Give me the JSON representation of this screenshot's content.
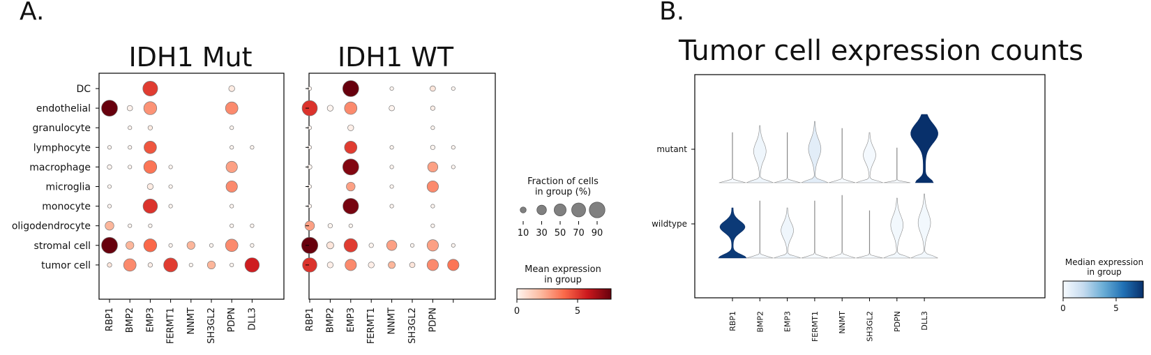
{
  "panel_labels": {
    "a": "A.",
    "b": "B."
  },
  "chart_data": [
    {
      "type": "dotplot",
      "title": "IDH1 Mut",
      "rows": [
        "DC",
        "endothelial",
        "granulocyte",
        "lymphocyte",
        "macrophage",
        "microglia",
        "monocyte",
        "oligodendrocyte",
        "stromal cell",
        "tumor cell"
      ],
      "genes": [
        "RBP1",
        "BMP2",
        "EMP3",
        "FERMT1",
        "NNMT",
        "SH3GL2",
        "PDPN",
        "DLL3"
      ],
      "fraction_pct": [
        [
          0,
          0,
          80,
          0,
          0,
          0,
          10,
          0
        ],
        [
          95,
          8,
          60,
          0,
          0,
          0,
          55,
          0
        ],
        [
          0,
          3,
          5,
          0,
          0,
          0,
          3,
          0
        ],
        [
          3,
          3,
          55,
          0,
          0,
          0,
          3,
          3
        ],
        [
          5,
          3,
          60,
          3,
          0,
          0,
          45,
          0
        ],
        [
          3,
          0,
          10,
          3,
          0,
          0,
          45,
          0
        ],
        [
          3,
          0,
          75,
          3,
          0,
          0,
          3,
          0
        ],
        [
          25,
          3,
          3,
          0,
          0,
          0,
          3,
          3
        ],
        [
          95,
          20,
          60,
          3,
          20,
          3,
          55,
          3
        ],
        [
          5,
          55,
          5,
          70,
          3,
          20,
          3,
          75
        ]
      ],
      "mean_expression": [
        [
          0,
          0,
          4.8,
          0,
          0,
          0,
          0.3,
          0
        ],
        [
          7.5,
          0.1,
          2.8,
          0,
          0,
          0,
          3.0,
          0
        ],
        [
          0,
          0,
          0.3,
          0,
          0,
          0,
          0,
          0
        ],
        [
          0,
          0,
          4.2,
          0,
          0,
          0,
          0,
          0
        ],
        [
          0,
          0,
          3.5,
          0,
          0,
          0,
          2.5,
          0
        ],
        [
          0,
          0,
          0.3,
          0,
          0,
          0,
          3.0,
          0
        ],
        [
          0,
          0,
          5.0,
          0,
          0,
          0,
          0,
          0
        ],
        [
          2.0,
          0,
          0,
          0,
          0,
          0,
          0,
          0
        ],
        [
          7.8,
          2.0,
          3.8,
          0,
          2.0,
          0,
          3.0,
          0
        ],
        [
          0.5,
          3.0,
          0.2,
          4.8,
          0,
          2.0,
          0,
          5.5
        ]
      ]
    },
    {
      "type": "dotplot",
      "title": "IDH1 WT",
      "rows": [
        "DC",
        "endothelial",
        "granulocyte",
        "lymphocyte",
        "macrophage",
        "microglia",
        "monocyte",
        "oligodendrocyte",
        "stromal cell",
        "tumor cell"
      ],
      "genes": [
        "RBP1",
        "BMP2",
        "EMP3",
        "FERMT1",
        "NNMT",
        "SH3GL2",
        "PDPN",
        ""
      ],
      "fraction_pct": [
        [
          3,
          0,
          95,
          0,
          3,
          0,
          8,
          3
        ],
        [
          85,
          10,
          55,
          0,
          8,
          0,
          5,
          0
        ],
        [
          3,
          0,
          10,
          0,
          0,
          0,
          3,
          0
        ],
        [
          3,
          0,
          55,
          0,
          3,
          0,
          5,
          3
        ],
        [
          5,
          0,
          95,
          0,
          3,
          0,
          35,
          3
        ],
        [
          3,
          0,
          25,
          0,
          3,
          0,
          45,
          0
        ],
        [
          3,
          0,
          90,
          0,
          3,
          0,
          3,
          0
        ],
        [
          30,
          5,
          3,
          0,
          0,
          0,
          3,
          0
        ],
        [
          98,
          15,
          65,
          5,
          35,
          3,
          45,
          3
        ],
        [
          75,
          10,
          45,
          10,
          15,
          8,
          45,
          45
        ]
      ],
      "mean_expression": [
        [
          0,
          0,
          7.5,
          0,
          0,
          0,
          0.5,
          0
        ],
        [
          5.0,
          0,
          3.0,
          0,
          0,
          0,
          0.2,
          0
        ],
        [
          0,
          0,
          0.2,
          0,
          0,
          0,
          0,
          0
        ],
        [
          0,
          0,
          4.8,
          0,
          0,
          0,
          0,
          0
        ],
        [
          0,
          0,
          7.0,
          0,
          0,
          0,
          2.5,
          0
        ],
        [
          0,
          0,
          2.5,
          0,
          0,
          0,
          3.0,
          0
        ],
        [
          0,
          0,
          7.2,
          0,
          0,
          0,
          0,
          0
        ],
        [
          2.5,
          0,
          0,
          0,
          0,
          0,
          0,
          0
        ],
        [
          8.0,
          0.5,
          4.8,
          0,
          2.5,
          0,
          2.5,
          0
        ],
        [
          5.0,
          0.2,
          3.0,
          0.2,
          2.0,
          0.5,
          3.0,
          3.5
        ]
      ]
    },
    {
      "type": "violin",
      "title": "Tumor cell expression counts",
      "categories": [
        "mutant",
        "wildtype"
      ],
      "genes": [
        "RBP1",
        "BMP2",
        "EMP3",
        "FERMT1",
        "NNMT",
        "SH3GL2",
        "PDPN",
        "DLL3"
      ],
      "median_expression": [
        [
          0,
          0.3,
          0.2,
          0.8,
          0,
          0.1,
          0,
          7.5
        ],
        [
          7.2,
          0.1,
          0.3,
          0,
          0,
          0,
          0.2,
          0.2
        ]
      ]
    }
  ],
  "legends": {
    "fraction": {
      "title_line1": "Fraction of cells",
      "title_line2": "in group (%)",
      "ticks": [
        "10",
        "30",
        "50",
        "70",
        "90"
      ]
    },
    "mean_expr": {
      "title_line1": "Mean expression",
      "title_line2": "in group",
      "ticks": [
        "0",
        "5"
      ],
      "range": [
        0,
        7.5
      ]
    },
    "median_expr": {
      "title_line1": "Median expression",
      "title_line2": "in group",
      "ticks": [
        "0",
        "5"
      ],
      "range": [
        0,
        7.5
      ]
    }
  },
  "colors": {
    "reds": [
      "#fff5f0",
      "#fcbba1",
      "#fb6a4a",
      "#cb181d",
      "#67000d"
    ],
    "blues": [
      "#f7fbff",
      "#c6dbef",
      "#6baed6",
      "#2171b5",
      "#08306b"
    ]
  }
}
